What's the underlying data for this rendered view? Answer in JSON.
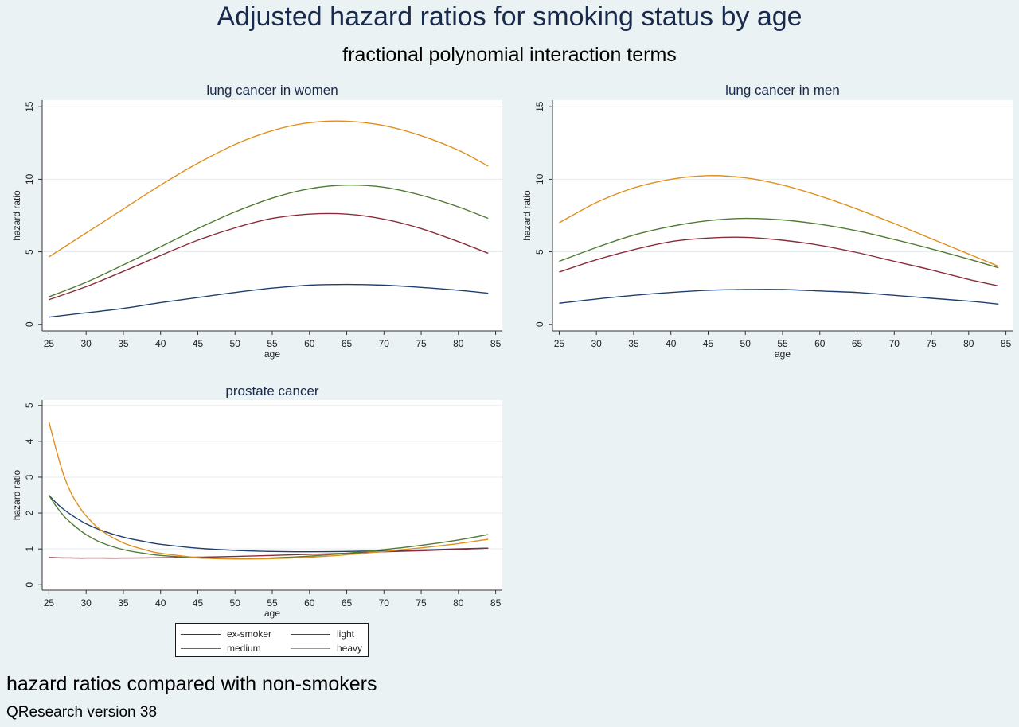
{
  "title": "Adjusted hazard ratios for smoking status by age",
  "subtitle": "fractional polynomial interaction terms",
  "note": "hazard ratios compared with non-smokers",
  "caption": "QResearch version 38",
  "colors": {
    "ex-smoker": "#1f3f6e",
    "light": "#8b2c3a",
    "medium": "#4f7b32",
    "heavy": "#e08f1f",
    "grid": "#e6ecee",
    "axis": "#333333"
  },
  "legend": [
    {
      "name": "ex-smoker",
      "color": "#1f3f6e"
    },
    {
      "name": "light",
      "color": "#8b2c3a"
    },
    {
      "name": "medium",
      "color": "#4f7b32"
    },
    {
      "name": "heavy",
      "color": "#e08f1f"
    }
  ],
  "chart_data": [
    {
      "type": "line",
      "title": "lung cancer in women",
      "xlabel": "age",
      "ylabel": "hazard ratio",
      "xlim": [
        25,
        85
      ],
      "ylim": [
        0,
        15
      ],
      "xticks": [
        25,
        30,
        35,
        40,
        45,
        50,
        55,
        60,
        65,
        70,
        75,
        80,
        85
      ],
      "yticks": [
        0,
        5,
        10,
        15
      ],
      "grid": true,
      "x": [
        25,
        30,
        35,
        40,
        45,
        50,
        55,
        60,
        65,
        70,
        75,
        80,
        84
      ],
      "series": [
        {
          "name": "ex-smoker",
          "values": [
            0.5,
            0.8,
            1.1,
            1.5,
            1.85,
            2.2,
            2.5,
            2.7,
            2.75,
            2.7,
            2.55,
            2.35,
            2.15
          ]
        },
        {
          "name": "light",
          "values": [
            1.7,
            2.6,
            3.65,
            4.75,
            5.8,
            6.65,
            7.3,
            7.6,
            7.6,
            7.25,
            6.6,
            5.7,
            4.9
          ]
        },
        {
          "name": "medium",
          "values": [
            1.9,
            2.9,
            4.1,
            5.35,
            6.6,
            7.75,
            8.7,
            9.35,
            9.6,
            9.45,
            8.9,
            8.1,
            7.3
          ]
        },
        {
          "name": "heavy",
          "values": [
            4.65,
            6.3,
            7.95,
            9.6,
            11.1,
            12.4,
            13.35,
            13.9,
            14.0,
            13.7,
            13.0,
            12.0,
            10.9
          ]
        }
      ]
    },
    {
      "type": "line",
      "title": "lung cancer in men",
      "xlabel": "age",
      "ylabel": "hazard ratio",
      "xlim": [
        25,
        85
      ],
      "ylim": [
        0,
        15
      ],
      "xticks": [
        25,
        30,
        35,
        40,
        45,
        50,
        55,
        60,
        65,
        70,
        75,
        80,
        85
      ],
      "yticks": [
        0,
        5,
        10,
        15
      ],
      "grid": true,
      "x": [
        25,
        30,
        35,
        40,
        45,
        50,
        55,
        60,
        65,
        70,
        75,
        80,
        84
      ],
      "series": [
        {
          "name": "ex-smoker",
          "values": [
            1.45,
            1.75,
            2.0,
            2.2,
            2.35,
            2.4,
            2.4,
            2.3,
            2.2,
            2.0,
            1.8,
            1.6,
            1.4
          ]
        },
        {
          "name": "light",
          "values": [
            3.6,
            4.45,
            5.15,
            5.7,
            5.95,
            6.0,
            5.8,
            5.45,
            4.95,
            4.35,
            3.75,
            3.1,
            2.65
          ]
        },
        {
          "name": "medium",
          "values": [
            4.35,
            5.3,
            6.15,
            6.75,
            7.15,
            7.3,
            7.2,
            6.9,
            6.45,
            5.85,
            5.2,
            4.5,
            3.9
          ]
        },
        {
          "name": "heavy",
          "values": [
            7.0,
            8.4,
            9.4,
            10.0,
            10.25,
            10.1,
            9.6,
            8.85,
            7.95,
            6.95,
            5.9,
            4.85,
            4.0
          ]
        }
      ]
    },
    {
      "type": "line",
      "title": "prostate cancer",
      "xlabel": "age",
      "ylabel": "hazard ratio",
      "xlim": [
        25,
        85
      ],
      "ylim": [
        0,
        5
      ],
      "xticks": [
        25,
        30,
        35,
        40,
        45,
        50,
        55,
        60,
        65,
        70,
        75,
        80,
        85
      ],
      "yticks": [
        0,
        1,
        2,
        3,
        4,
        5
      ],
      "grid": true,
      "x": [
        25,
        26,
        27,
        28,
        29,
        30,
        32,
        35,
        38,
        40,
        45,
        50,
        55,
        60,
        65,
        70,
        75,
        80,
        84
      ],
      "series": [
        {
          "name": "ex-smoker",
          "values": [
            2.5,
            2.28,
            2.1,
            1.95,
            1.82,
            1.7,
            1.52,
            1.33,
            1.2,
            1.13,
            1.02,
            0.96,
            0.93,
            0.92,
            0.93,
            0.95,
            0.97,
            1.0,
            1.02
          ]
        },
        {
          "name": "light",
          "values": [
            0.76,
            0.755,
            0.75,
            0.75,
            0.745,
            0.745,
            0.745,
            0.745,
            0.75,
            0.755,
            0.77,
            0.79,
            0.82,
            0.85,
            0.88,
            0.92,
            0.95,
            0.99,
            1.02
          ]
        },
        {
          "name": "medium",
          "values": [
            2.5,
            2.18,
            1.92,
            1.72,
            1.55,
            1.4,
            1.18,
            0.98,
            0.87,
            0.82,
            0.75,
            0.73,
            0.75,
            0.8,
            0.88,
            0.98,
            1.1,
            1.25,
            1.4
          ]
        },
        {
          "name": "heavy",
          "values": [
            4.55,
            3.75,
            3.05,
            2.55,
            2.2,
            1.92,
            1.52,
            1.17,
            0.97,
            0.88,
            0.76,
            0.72,
            0.73,
            0.77,
            0.84,
            0.93,
            1.03,
            1.15,
            1.27
          ]
        }
      ]
    }
  ]
}
